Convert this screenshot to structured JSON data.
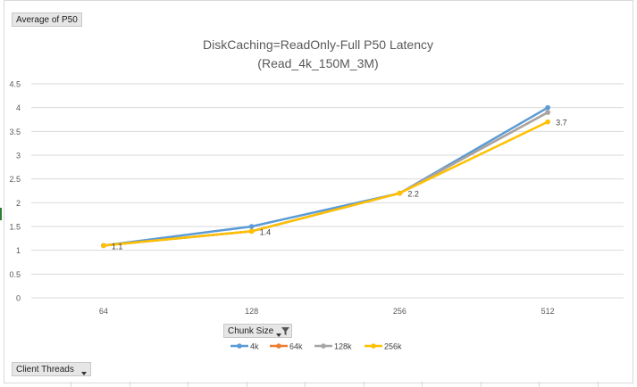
{
  "pivot": {
    "value_field": "Average of P50",
    "axis_field": "Chunk Size",
    "legend_field": "Client Threads"
  },
  "icons": {
    "dropdown": "chevron-down-icon",
    "filter": "filter-icon"
  },
  "chart_data": {
    "type": "line",
    "title": "DiskCaching=ReadOnly-Full P50 Latency",
    "subtitle": "(Read_4k_150M_3M)",
    "xlabel": "",
    "ylabel": "",
    "categories": [
      "64",
      "128",
      "256",
      "512"
    ],
    "ylim": [
      0,
      4.5
    ],
    "yticks": [
      "0",
      "0.5",
      "1",
      "1.5",
      "2",
      "2.5",
      "3",
      "3.5",
      "4",
      "4.5"
    ],
    "grid": true,
    "legend_position": "bottom",
    "series": [
      {
        "name": "4k",
        "color": "#5b9bd5",
        "values": [
          1.1,
          1.5,
          2.2,
          4.0
        ]
      },
      {
        "name": "64k",
        "color": "#ed7d31",
        "values": [
          1.1,
          1.4,
          2.2,
          3.9
        ]
      },
      {
        "name": "128k",
        "color": "#a5a5a5",
        "values": [
          1.1,
          1.4,
          2.2,
          3.9
        ]
      },
      {
        "name": "256k",
        "color": "#ffc000",
        "values": [
          1.1,
          1.4,
          2.2,
          3.7
        ]
      }
    ],
    "data_labels": [
      {
        "series": "256k",
        "index": 0,
        "text": "1.1"
      },
      {
        "series": "256k",
        "index": 1,
        "text": "1.4"
      },
      {
        "series": "256k",
        "index": 2,
        "text": "2.2"
      },
      {
        "series": "256k",
        "index": 3,
        "text": "3.7"
      }
    ]
  }
}
